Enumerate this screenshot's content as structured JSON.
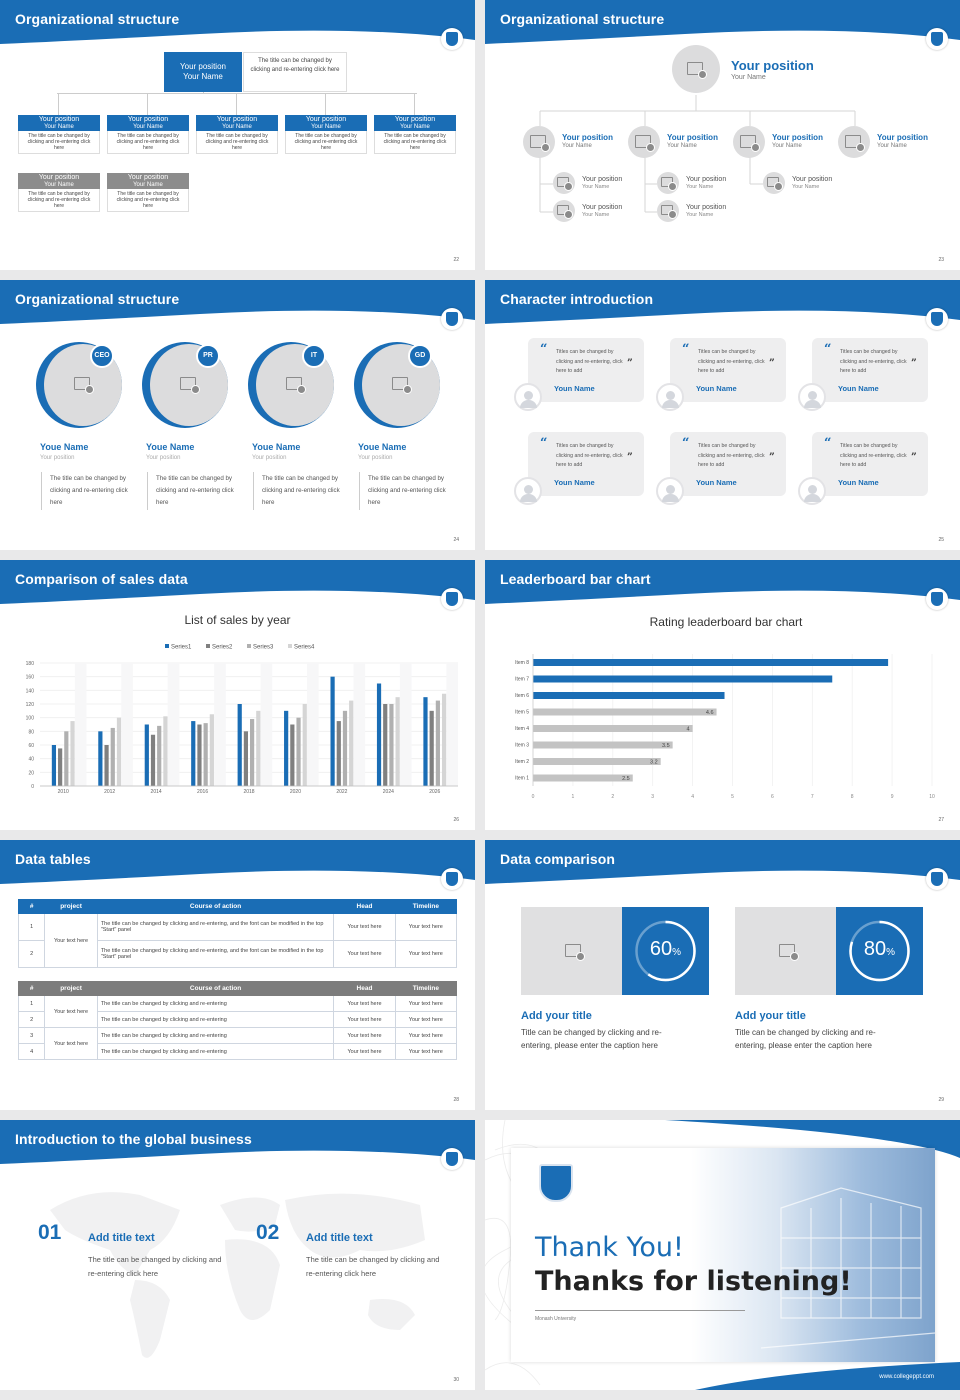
{
  "theme": {
    "accent": "#1a6db5",
    "grey": "#8c8c8c",
    "light": "#dcdcdd"
  },
  "slides": [
    {
      "title": "Organizational structure",
      "num": "22",
      "top": {
        "pos": "Your position",
        "name": "Your Name",
        "note": "The title can be changed by clicking and re-entering click here"
      },
      "row1": [
        {
          "pos": "Your position",
          "name": "Your Name",
          "desc": "The title can be changed by clicking and re-entering click here"
        },
        {
          "pos": "Your position",
          "name": "Your Name",
          "desc": "The title can be changed by clicking and re-entering click here"
        },
        {
          "pos": "Your position",
          "name": "Your Name",
          "desc": "The title can be changed by clicking and re-entering click here"
        },
        {
          "pos": "Your position",
          "name": "Your Name",
          "desc": "The title can be changed by clicking and re-entering click here"
        },
        {
          "pos": "Your position",
          "name": "Your Name",
          "desc": "The title can be changed by clicking and re-entering click here"
        }
      ],
      "row2": [
        {
          "pos": "Your position",
          "name": "Your Name",
          "desc": "The title can be changed by clicking and re-entering click here"
        },
        {
          "pos": "Your position",
          "name": "Your Name",
          "desc": "The title can be changed by clicking and re-entering click here"
        }
      ]
    },
    {
      "title": "Organizational structure",
      "num": "23",
      "top": {
        "pos": "Your position",
        "name": "Your Name"
      },
      "level2": [
        {
          "pos": "Your position",
          "name": "Your Name"
        },
        {
          "pos": "Your position",
          "name": "Your Name"
        },
        {
          "pos": "Your position",
          "name": "Your Name"
        },
        {
          "pos": "Your position",
          "name": "Your Name"
        }
      ],
      "level3": [
        {
          "pos": "Your position",
          "name": "Your Name"
        },
        {
          "pos": "Your position",
          "name": "Your Name"
        },
        {
          "pos": "Your position",
          "name": "Your Name"
        },
        {
          "pos": "Your position",
          "name": "Your Name"
        },
        {
          "pos": "Your position",
          "name": "Your Name"
        }
      ]
    },
    {
      "title": "Organizational structure",
      "num": "24",
      "people": [
        {
          "badge": "CEO",
          "name": "Youe Name",
          "pos": "Your position",
          "desc": "The title can be changed by clicking and re-entering click here"
        },
        {
          "badge": "PR",
          "name": "Youe Name",
          "pos": "Your position",
          "desc": "The title can be changed by clicking and re-entering click here"
        },
        {
          "badge": "IT",
          "name": "Youe Name",
          "pos": "Your position",
          "desc": "The title can be changed by clicking and re-entering click here"
        },
        {
          "badge": "GD",
          "name": "Youe Name",
          "pos": "Your position",
          "desc": "The title can be changed by clicking and re-entering click here"
        }
      ]
    },
    {
      "title": "Character introduction",
      "num": "25",
      "quotes": [
        {
          "text": "Titles can be changed by clicking and re-entering, click here to add",
          "name": "Youn Name"
        },
        {
          "text": "Titles can be changed by clicking and re-entering, click here to add",
          "name": "Youn Name"
        },
        {
          "text": "Titles can be changed by clicking and re-entering, click here to add",
          "name": "Youn Name"
        },
        {
          "text": "Titles can be changed by clicking and re-entering, click here to add",
          "name": "Youn Name"
        },
        {
          "text": "Titles can be changed by clicking and re-entering, click here to add",
          "name": "Youn Name"
        },
        {
          "text": "Titles can be changed by clicking and re-entering, click here to add",
          "name": "Youn Name"
        }
      ]
    },
    {
      "title": "Comparison of sales data",
      "num": "26"
    },
    {
      "title": "Leaderboard bar chart",
      "num": "27"
    },
    {
      "title": "Data tables",
      "num": "28",
      "t1": {
        "headers": [
          "#",
          "project",
          "Course of action",
          "Head",
          "Timeline"
        ],
        "project": "Your text here",
        "rows": [
          {
            "n": "1",
            "action": "The title can be changed by clicking and re-entering, and the font can be modified in the top \"Start\" panel",
            "head": "Your text here",
            "time": "Your text here"
          },
          {
            "n": "2",
            "action": "The title can be changed by clicking and re-entering, and the font can be modified in the top \"Start\" panel",
            "head": "Your text here",
            "time": "Your text here"
          }
        ]
      },
      "t2": {
        "headers": [
          "#",
          "project",
          "Course of action",
          "Head",
          "Timeline"
        ],
        "project": "Your text here",
        "rows": [
          {
            "n": "1",
            "action": "The title can be changed by clicking and re-entering",
            "head": "Your text here",
            "time": "Your text here"
          },
          {
            "n": "2",
            "action": "The title can be changed by clicking and re-entering",
            "head": "Your text here",
            "time": "Your text here"
          },
          {
            "n": "3",
            "action": "The title can be changed by clicking and re-entering",
            "head": "Your text here",
            "time": "Your text here"
          },
          {
            "n": "4",
            "action": "The title can be changed by clicking and re-entering",
            "head": "Your text here",
            "time": "Your text here"
          }
        ]
      }
    },
    {
      "title": "Data comparison",
      "num": "29",
      "cards": [
        {
          "pct": "60",
          "unit": "%",
          "value": 0.6,
          "title": "Add your title",
          "desc": "Title can be changed by clicking and re-entering, please enter the caption here"
        },
        {
          "pct": "80",
          "unit": "%",
          "value": 0.8,
          "title": "Add your title",
          "desc": "Title can be changed by clicking and re-entering, please enter the caption here"
        }
      ]
    },
    {
      "title": "Introduction to the global business",
      "num": "30",
      "items": [
        {
          "n": "01",
          "title": "Add title text",
          "desc": "The title can be changed by clicking and re-entering click here"
        },
        {
          "n": "02",
          "title": "Add title text",
          "desc": "The title can be changed by clicking and re-entering click here"
        }
      ]
    },
    {
      "thanks1": "Thank You!",
      "thanks2": "Thanks for listening!",
      "uni": "Monash University",
      "url": "www.collegeppt.com"
    }
  ],
  "chart_data": [
    {
      "type": "bar",
      "title": "List of sales by year",
      "categories": [
        "2010",
        "2012",
        "2014",
        "2016",
        "2018",
        "2020",
        "2022",
        "2024",
        "2026"
      ],
      "series": [
        {
          "name": "Series1",
          "color": "#1a6db5",
          "values": [
            60,
            80,
            90,
            95,
            120,
            110,
            160,
            150,
            130
          ]
        },
        {
          "name": "Series2",
          "color": "#808080",
          "values": [
            55,
            60,
            75,
            90,
            80,
            90,
            95,
            120,
            110
          ]
        },
        {
          "name": "Series3",
          "color": "#b0b0b0",
          "values": [
            80,
            85,
            88,
            92,
            98,
            100,
            110,
            120,
            125
          ]
        },
        {
          "name": "Series4",
          "color": "#d5d5d5",
          "values": [
            95,
            100,
            102,
            105,
            110,
            120,
            125,
            130,
            135
          ]
        }
      ],
      "ylim": [
        0,
        180
      ],
      "yticks": [
        "0",
        "20",
        "40",
        "60",
        "80",
        "100",
        "120",
        "140",
        "160",
        "180"
      ],
      "grid": true,
      "legend": "top"
    },
    {
      "type": "bar",
      "title": "Rating leaderboard bar chart",
      "orientation": "horizontal",
      "categories": [
        "Item 8",
        "Item 7",
        "Item 6",
        "Item 5",
        "Item 4",
        "Item 3",
        "Item 2",
        "Item 1"
      ],
      "values": [
        8.9,
        7.5,
        4.8,
        4.6,
        4,
        3.5,
        3.2,
        2.5
      ],
      "labels": [
        "",
        "",
        "",
        "4.6",
        "4",
        "3.5",
        "3.2",
        "2.5"
      ],
      "xlim": [
        0,
        10
      ],
      "xticks": [
        "0",
        "1",
        "2",
        "3",
        "4",
        "5",
        "6",
        "7",
        "8",
        "9",
        "10"
      ]
    }
  ]
}
